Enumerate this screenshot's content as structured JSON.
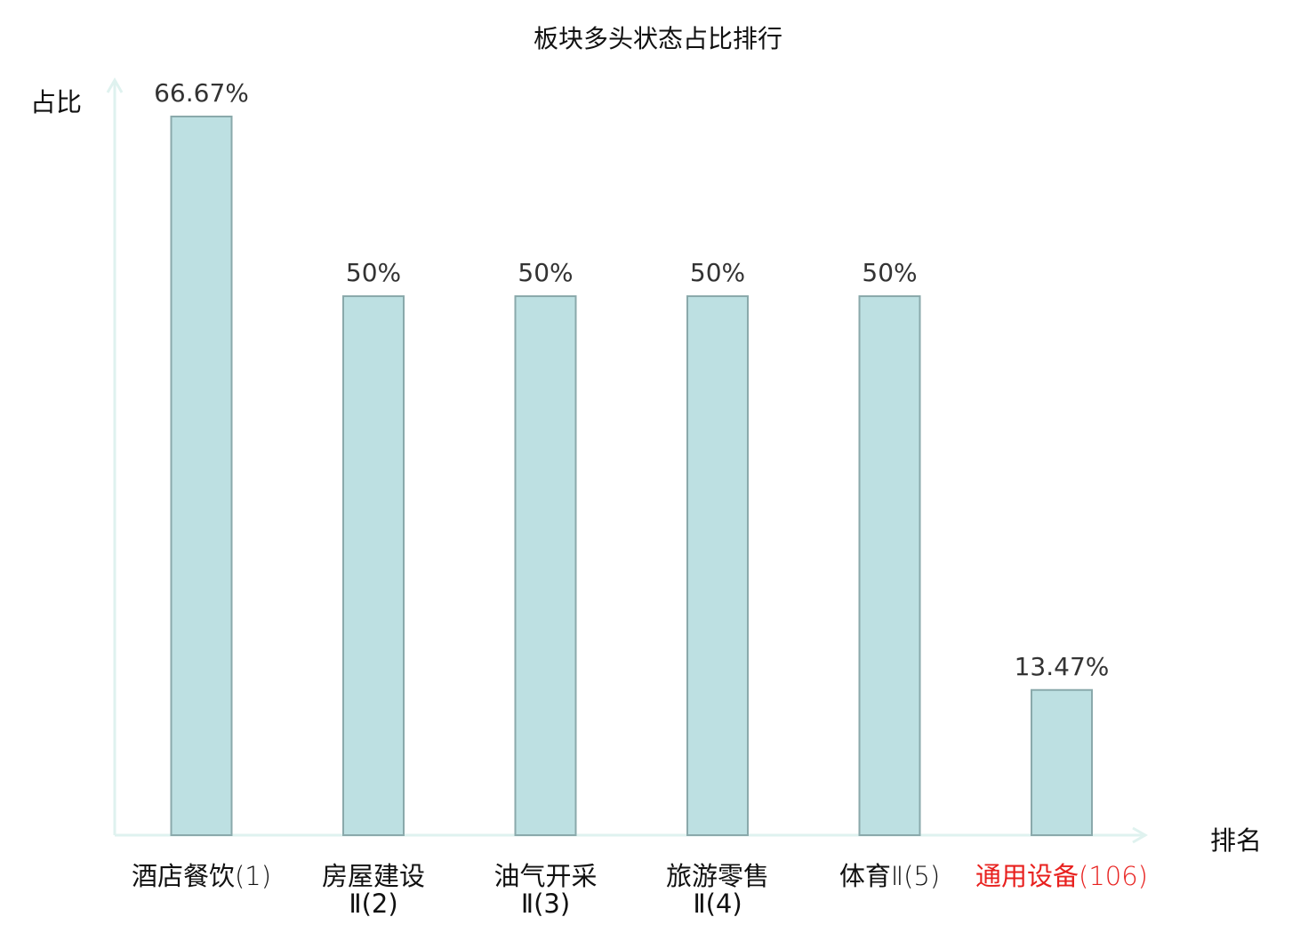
{
  "chart_data": {
    "type": "bar",
    "title": "板块多头状态占比排行",
    "xlabel": "排名",
    "ylabel": "占比",
    "ylim": [
      0,
      70
    ],
    "grid": false,
    "categories": [
      {
        "name": "酒店餐饮",
        "rank": "(1)",
        "line2": ""
      },
      {
        "name": "房屋建设",
        "rank": "",
        "line2": "Ⅱ(2)"
      },
      {
        "name": "油气开采",
        "rank": "",
        "line2": "Ⅱ(3)"
      },
      {
        "name": "旅游零售",
        "rank": "",
        "line2": "Ⅱ(4)"
      },
      {
        "name": "体育",
        "rank": "Ⅱ(5)",
        "line2": ""
      },
      {
        "name": "通用设备",
        "rank": "(106)",
        "line2": ""
      }
    ],
    "values": [
      66.67,
      50,
      50,
      50,
      50,
      13.47
    ],
    "value_labels": [
      "66.67%",
      "50%",
      "50%",
      "50%",
      "50%",
      "13.47%"
    ],
    "highlight_index": 5,
    "colors": {
      "bar_fill": "#bde0e2",
      "bar_stroke": "#8aa9ab",
      "axis": "#dff2ef",
      "label": "#333333",
      "category": "#111111",
      "highlight": "#e8201e"
    }
  }
}
